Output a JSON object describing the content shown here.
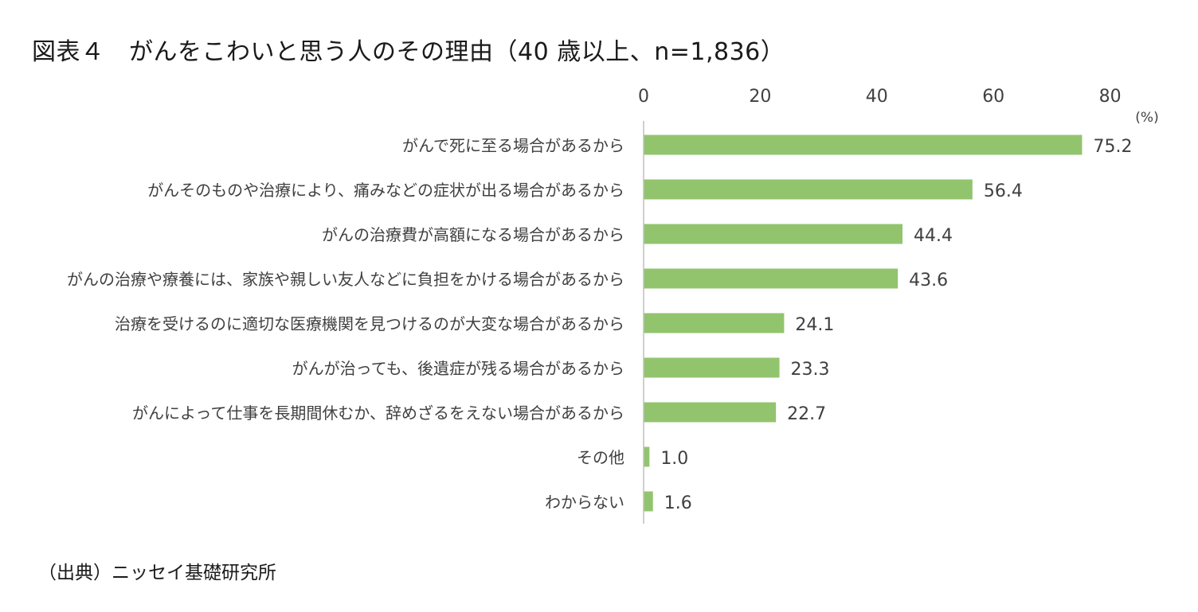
{
  "title": "図表４　がんをこわいと思う人のその理由（40 歳以上、n=1,836）",
  "source": "（出典）ニッセイ基礎研究所",
  "chart_data": {
    "type": "bar",
    "orientation": "horizontal",
    "unit_label": "(%)",
    "xlim": [
      0,
      80
    ],
    "ticks": [
      0,
      20,
      40,
      60,
      80
    ],
    "tick_position": "top",
    "grid": false,
    "bar_color": "#92c46e",
    "categories": [
      "がんで死に至る場合があるから",
      "がんそのものや治療により、痛みなどの症状が出る場合があるから",
      "がんの治療費が高額になる場合があるから",
      "がんの治療や療養には、家族や親しい友人などに負担をかける場合があるから",
      "治療を受けるのに適切な医療機関を見つけるのが大変な場合があるから",
      "がんが治っても、後遺症が残る場合があるから",
      "がんによって仕事を長期間休むか、辞めざるをえない場合があるから",
      "その他",
      "わからない"
    ],
    "values": [
      75.2,
      56.4,
      44.4,
      43.6,
      24.1,
      23.3,
      22.7,
      1.0,
      1.6
    ],
    "value_labels": [
      "75.2",
      "56.4",
      "44.4",
      "43.6",
      "24.1",
      "23.3",
      "22.7",
      "1.0",
      "1.6"
    ]
  }
}
